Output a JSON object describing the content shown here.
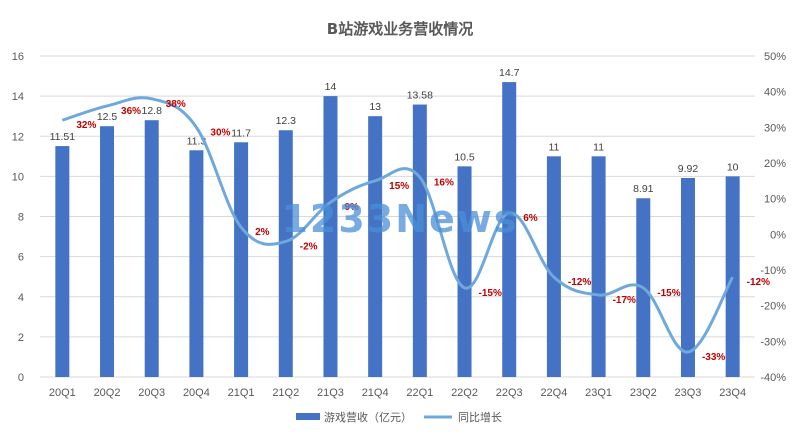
{
  "chart_data": {
    "type": "bar",
    "title": "B站游戏业务营收情况",
    "categories": [
      "20Q1",
      "20Q2",
      "20Q3",
      "20Q4",
      "21Q1",
      "21Q2",
      "21Q3",
      "21Q4",
      "22Q1",
      "22Q2",
      "22Q3",
      "22Q4",
      "23Q1",
      "23Q2",
      "23Q3",
      "23Q4"
    ],
    "series": [
      {
        "name": "游戏营收（亿元）",
        "kind": "bar",
        "axis": "left",
        "color": "#4472c4",
        "values": [
          11.51,
          12.5,
          12.8,
          11.3,
          11.7,
          12.3,
          14,
          13,
          13.58,
          10.5,
          14.7,
          11,
          11,
          8.91,
          9.92,
          10
        ],
        "labels": [
          "11.51",
          "12.5",
          "12.8",
          "11.3",
          "11.7",
          "12.3",
          "14",
          "13",
          "13.58",
          "10.5",
          "14.7",
          "11",
          "11",
          "8.91",
          "9.92",
          "10"
        ]
      },
      {
        "name": "同比增长",
        "kind": "line",
        "axis": "right",
        "color": "#6fa8dc",
        "values": [
          32,
          36,
          38,
          30,
          2,
          -2,
          9,
          15,
          16,
          -15,
          6,
          -12,
          -17,
          -15,
          -33,
          -12
        ],
        "labels": [
          "32%",
          "36%",
          "38%",
          "30%",
          "2%",
          "-2%",
          "9%",
          "15%",
          "16%",
          "-15%",
          "6%",
          "-12%",
          "-17%",
          "-15%",
          "-33%",
          "-12%"
        ]
      }
    ],
    "y_left": {
      "min": 0,
      "max": 16,
      "step": 2,
      "ticks": [
        "0",
        "2",
        "4",
        "6",
        "8",
        "10",
        "12",
        "14",
        "16"
      ]
    },
    "y_right": {
      "min": -40,
      "max": 50,
      "step": 10,
      "ticks": [
        "-40%",
        "-30%",
        "-20%",
        "-10%",
        "0%",
        "10%",
        "20%",
        "30%",
        "40%",
        "50%"
      ]
    },
    "grid": true,
    "legend_position": "bottom",
    "watermark": "1233News"
  }
}
